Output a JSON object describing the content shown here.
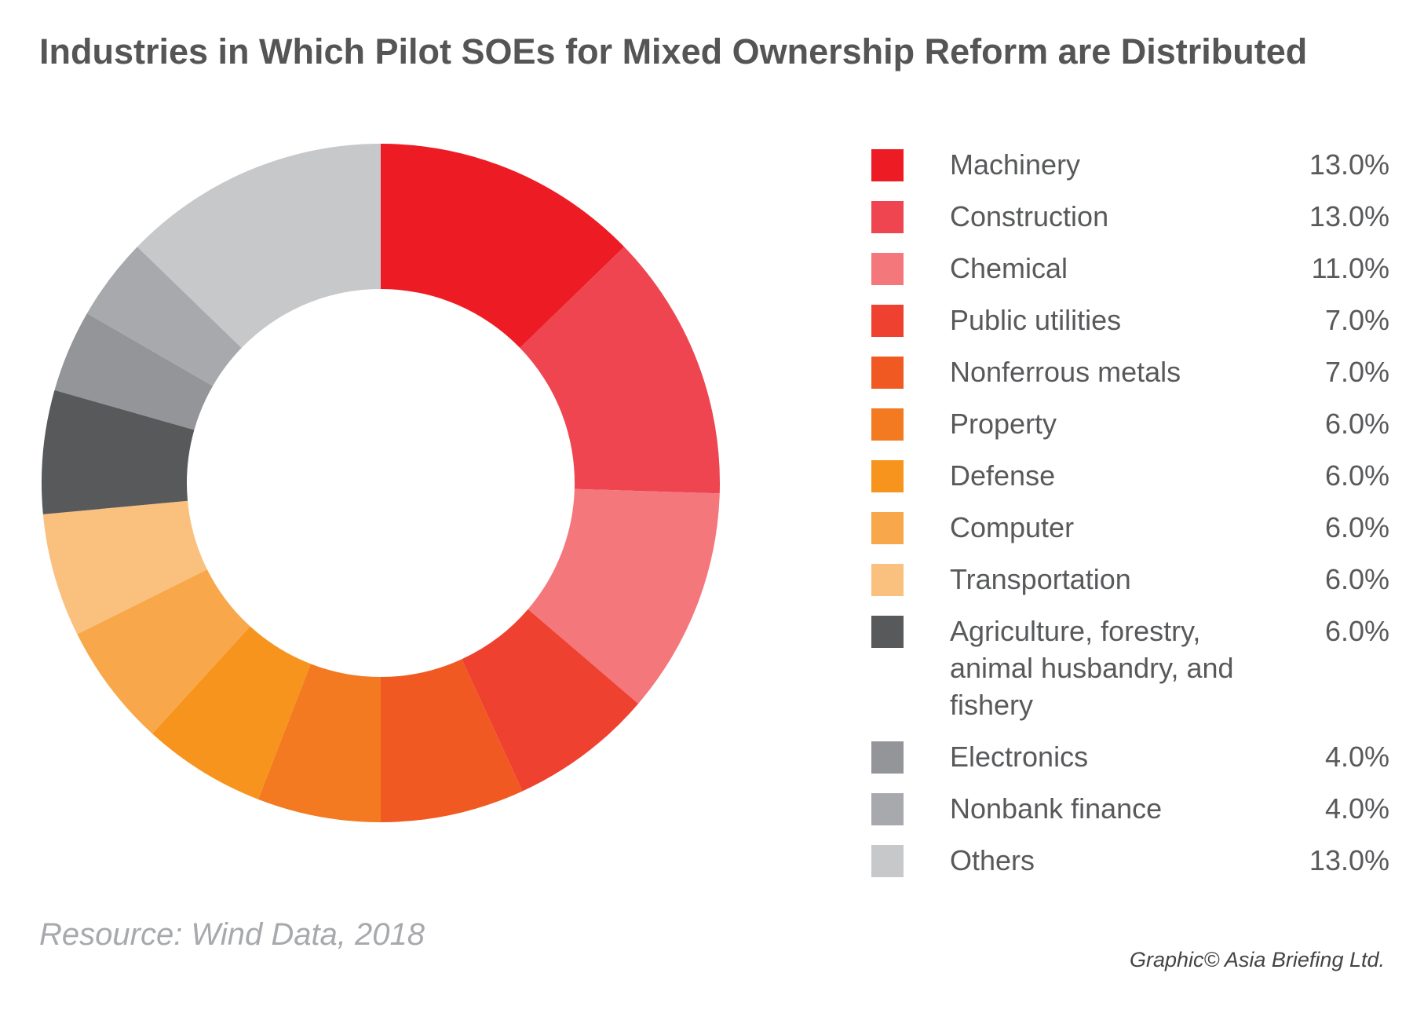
{
  "title": "Industries in Which Pilot SOEs for Mixed Ownership Reform are Distributed",
  "source": "Resource: Wind Data, 2018",
  "credit": "Graphic© Asia Briefing Ltd.",
  "chart_data": {
    "type": "pie",
    "style": "donut",
    "title": "Industries in Which Pilot SOEs for Mixed Ownership Reform are Distributed",
    "legend_position": "right",
    "categories": [
      "Machinery",
      "Construction",
      "Chemical",
      "Public utilities",
      "Nonferrous metals",
      "Property",
      "Defense",
      "Computer",
      "Transportation",
      "Agriculture, forestry, animal husbandry, and fishery",
      "Electronics",
      "Nonbank finance",
      "Others"
    ],
    "values": [
      13.0,
      13.0,
      11.0,
      7.0,
      7.0,
      6.0,
      6.0,
      6.0,
      6.0,
      6.0,
      4.0,
      4.0,
      13.0
    ],
    "value_labels": [
      "13.0%",
      "13.0%",
      "11.0%",
      "7.0%",
      "7.0%",
      "6.0%",
      "6.0%",
      "6.0%",
      "6.0%",
      "6.0%",
      "4.0%",
      "4.0%",
      "13.0%"
    ],
    "colors": [
      "#ed1c24",
      "#ee4550",
      "#f4777c",
      "#ef4130",
      "#f05a22",
      "#f37a20",
      "#f7941d",
      "#f8a84a",
      "#fac07e",
      "#58595b",
      "#939598",
      "#a7a9ac",
      "#c7c8ca"
    ]
  }
}
